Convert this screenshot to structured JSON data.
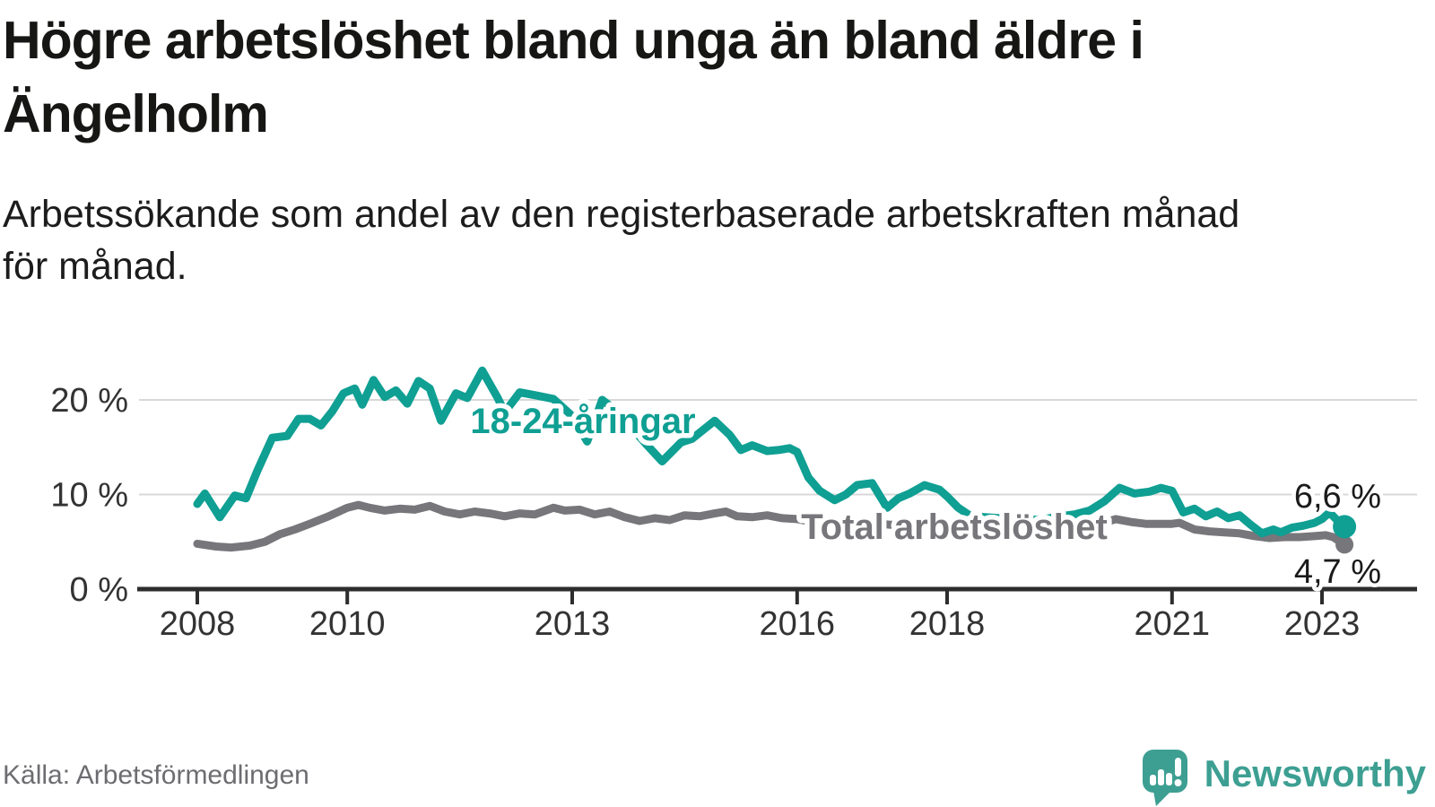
{
  "header": {
    "title": "Högre arbetslöshet bland unga än bland äldre i Ängelholm",
    "title_lines": [
      "Högre arbetslöshet bland unga än bland äldre i",
      "Ängelholm"
    ],
    "subtitle_lines": [
      "Arbetssökande som andel av den registerbaserade arbetskraften månad",
      "för månad."
    ]
  },
  "footer": {
    "source": "Källa: Arbetsförmedlingen",
    "logo_text": "Newsworthy",
    "logo_icon": "newsworthy-speech-bubble-bar-chart-icon",
    "logo_color": "#3d9f92"
  },
  "chart_data": {
    "type": "line",
    "unit": "%",
    "grid": "horizontal-only",
    "colors": {
      "youth": "#0f9f93",
      "total": "#76767b",
      "axis": "#2d2d2d",
      "gridline": "#d8d8d8"
    },
    "x_axis": {
      "ticks": [
        2008,
        2010,
        2013,
        2016,
        2018,
        2021,
        2023
      ],
      "tick_labels": [
        "2008",
        "2010",
        "2013",
        "2016",
        "2018",
        "2021",
        "2023"
      ],
      "range": [
        2008.0,
        2023.3
      ]
    },
    "y_axis": {
      "ticks": [
        0,
        10,
        20
      ],
      "tick_labels": [
        "0 %",
        "10 %",
        "20 %"
      ],
      "range": [
        0,
        24
      ]
    },
    "series": [
      {
        "name": "Total arbetslöshet",
        "color": "#76767b",
        "end_label": "4,7 %",
        "end_value": 4.7,
        "points": [
          [
            2008.0,
            4.8
          ],
          [
            2008.25,
            4.5
          ],
          [
            2008.45,
            4.4
          ],
          [
            2008.7,
            4.6
          ],
          [
            2008.9,
            5.0
          ],
          [
            2009.1,
            5.8
          ],
          [
            2009.3,
            6.3
          ],
          [
            2009.5,
            6.9
          ],
          [
            2009.75,
            7.7
          ],
          [
            2010.0,
            8.6
          ],
          [
            2010.15,
            8.9
          ],
          [
            2010.3,
            8.6
          ],
          [
            2010.5,
            8.3
          ],
          [
            2010.7,
            8.5
          ],
          [
            2010.9,
            8.4
          ],
          [
            2011.1,
            8.8
          ],
          [
            2011.3,
            8.2
          ],
          [
            2011.5,
            7.9
          ],
          [
            2011.7,
            8.2
          ],
          [
            2011.9,
            8.0
          ],
          [
            2012.1,
            7.7
          ],
          [
            2012.3,
            8.0
          ],
          [
            2012.5,
            7.9
          ],
          [
            2012.75,
            8.6
          ],
          [
            2012.9,
            8.3
          ],
          [
            2013.1,
            8.4
          ],
          [
            2013.3,
            7.9
          ],
          [
            2013.5,
            8.2
          ],
          [
            2013.7,
            7.6
          ],
          [
            2013.9,
            7.2
          ],
          [
            2014.1,
            7.5
          ],
          [
            2014.3,
            7.3
          ],
          [
            2014.5,
            7.8
          ],
          [
            2014.7,
            7.7
          ],
          [
            2014.9,
            8.0
          ],
          [
            2015.05,
            8.2
          ],
          [
            2015.2,
            7.7
          ],
          [
            2015.4,
            7.6
          ],
          [
            2015.6,
            7.8
          ],
          [
            2015.8,
            7.5
          ],
          [
            2016.0,
            7.4
          ],
          [
            2016.2,
            7.1
          ],
          [
            2016.4,
            7.3
          ],
          [
            2016.6,
            7.0
          ],
          [
            2016.8,
            7.1
          ],
          [
            2017.0,
            7.0
          ],
          [
            2017.25,
            6.8
          ],
          [
            2017.5,
            6.9
          ],
          [
            2017.75,
            6.7
          ],
          [
            2018.0,
            6.7
          ],
          [
            2018.25,
            6.5
          ],
          [
            2018.5,
            6.6
          ],
          [
            2018.75,
            6.4
          ],
          [
            2019.0,
            6.4
          ],
          [
            2019.25,
            6.3
          ],
          [
            2019.5,
            6.5
          ],
          [
            2019.75,
            6.6
          ],
          [
            2020.0,
            6.8
          ],
          [
            2020.25,
            7.4
          ],
          [
            2020.45,
            7.1
          ],
          [
            2020.65,
            6.9
          ],
          [
            2020.85,
            6.9
          ],
          [
            2021.0,
            6.9
          ],
          [
            2021.1,
            7.0
          ],
          [
            2021.3,
            6.3
          ],
          [
            2021.5,
            6.1
          ],
          [
            2021.7,
            6.0
          ],
          [
            2021.9,
            5.9
          ],
          [
            2022.1,
            5.6
          ],
          [
            2022.3,
            5.4
          ],
          [
            2022.5,
            5.5
          ],
          [
            2022.7,
            5.5
          ],
          [
            2022.9,
            5.6
          ],
          [
            2023.05,
            5.7
          ],
          [
            2023.15,
            5.5
          ],
          [
            2023.3,
            4.7
          ]
        ]
      },
      {
        "name": "18-24-åringar",
        "color": "#0f9f93",
        "end_label": "6,6 %",
        "end_value": 6.6,
        "points": [
          [
            2008.0,
            9.0
          ],
          [
            2008.1,
            10.1
          ],
          [
            2008.3,
            7.6
          ],
          [
            2008.5,
            9.9
          ],
          [
            2008.65,
            9.6
          ],
          [
            2008.8,
            12.5
          ],
          [
            2009.0,
            16.0
          ],
          [
            2009.2,
            16.2
          ],
          [
            2009.35,
            18.0
          ],
          [
            2009.5,
            18.0
          ],
          [
            2009.65,
            17.3
          ],
          [
            2009.8,
            18.8
          ],
          [
            2009.95,
            20.7
          ],
          [
            2010.1,
            21.2
          ],
          [
            2010.2,
            19.5
          ],
          [
            2010.35,
            22.1
          ],
          [
            2010.5,
            20.3
          ],
          [
            2010.65,
            21.0
          ],
          [
            2010.8,
            19.6
          ],
          [
            2010.95,
            22.0
          ],
          [
            2011.1,
            21.2
          ],
          [
            2011.25,
            17.8
          ],
          [
            2011.45,
            20.7
          ],
          [
            2011.6,
            20.2
          ],
          [
            2011.8,
            23.1
          ],
          [
            2012.0,
            20.3
          ],
          [
            2012.1,
            18.7
          ],
          [
            2012.3,
            20.8
          ],
          [
            2012.5,
            20.5
          ],
          [
            2012.75,
            20.1
          ],
          [
            2013.0,
            18.3
          ],
          [
            2013.2,
            15.6
          ],
          [
            2013.4,
            20.0
          ],
          [
            2013.6,
            18.8
          ],
          [
            2013.8,
            17.0
          ],
          [
            2014.0,
            15.2
          ],
          [
            2014.2,
            13.5
          ],
          [
            2014.45,
            15.5
          ],
          [
            2014.6,
            15.9
          ],
          [
            2014.9,
            17.8
          ],
          [
            2015.1,
            16.3
          ],
          [
            2015.25,
            14.7
          ],
          [
            2015.4,
            15.2
          ],
          [
            2015.6,
            14.6
          ],
          [
            2015.75,
            14.7
          ],
          [
            2015.9,
            14.9
          ],
          [
            2016.0,
            14.5
          ],
          [
            2016.15,
            11.8
          ],
          [
            2016.3,
            10.4
          ],
          [
            2016.5,
            9.4
          ],
          [
            2016.65,
            10.0
          ],
          [
            2016.8,
            11.0
          ],
          [
            2017.0,
            11.2
          ],
          [
            2017.2,
            8.6
          ],
          [
            2017.35,
            9.6
          ],
          [
            2017.5,
            10.1
          ],
          [
            2017.7,
            11.0
          ],
          [
            2017.9,
            10.5
          ],
          [
            2018.0,
            9.8
          ],
          [
            2018.15,
            8.6
          ],
          [
            2018.3,
            7.8
          ],
          [
            2018.5,
            7.6
          ],
          [
            2018.7,
            7.5
          ],
          [
            2018.9,
            7.6
          ],
          [
            2019.1,
            7.3
          ],
          [
            2019.3,
            7.4
          ],
          [
            2019.5,
            7.7
          ],
          [
            2019.7,
            7.9
          ],
          [
            2019.9,
            8.3
          ],
          [
            2020.1,
            9.3
          ],
          [
            2020.3,
            10.7
          ],
          [
            2020.5,
            10.1
          ],
          [
            2020.7,
            10.3
          ],
          [
            2020.85,
            10.7
          ],
          [
            2021.0,
            10.4
          ],
          [
            2021.15,
            8.1
          ],
          [
            2021.3,
            8.5
          ],
          [
            2021.45,
            7.7
          ],
          [
            2021.6,
            8.2
          ],
          [
            2021.75,
            7.5
          ],
          [
            2021.9,
            7.8
          ],
          [
            2022.05,
            6.8
          ],
          [
            2022.2,
            5.9
          ],
          [
            2022.35,
            6.3
          ],
          [
            2022.45,
            6.0
          ],
          [
            2022.6,
            6.5
          ],
          [
            2022.75,
            6.7
          ],
          [
            2022.9,
            7.0
          ],
          [
            2023.0,
            7.4
          ],
          [
            2023.1,
            8.1
          ],
          [
            2023.2,
            7.3
          ],
          [
            2023.3,
            6.6
          ]
        ]
      }
    ]
  }
}
